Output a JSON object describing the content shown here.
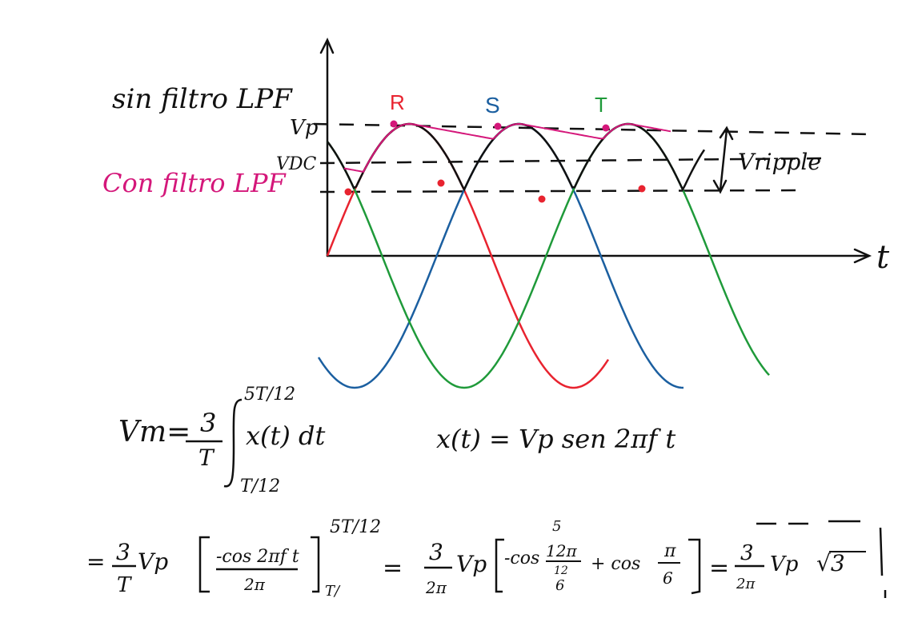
{
  "labels": {
    "sin_filtro": "sin filtro LPF",
    "con_filtro": "Con filtro LPF",
    "vp": "Vp",
    "vdc": "VDC",
    "vripple": "Vripple",
    "t": "t",
    "phase_r": "R",
    "phase_s": "S",
    "phase_t": "T"
  },
  "equations": {
    "vm_lhs": "Vm=",
    "vm_num": "3",
    "vm_den": "T",
    "int_upper": "5T/12",
    "int_lower": "T/12",
    "integrand": "x(t) dt",
    "xt_def": "x(t) = Vp sen 2πf t",
    "line2_a_num": "3",
    "line2_a_den": "T",
    "line2_vp": "Vp",
    "line2_cos_num": "-cos 2πf t",
    "line2_cos_den": "2π",
    "line2_upper": "5T/12",
    "line2_lower": "T/",
    "eq1": "=",
    "line2_b_num": "3",
    "line2_b_den": "2π",
    "line2_b_vp": "Vp",
    "bracket_cos1": "-cos",
    "frac_5": "5",
    "frac_num": "12π",
    "frac_mid": "12",
    "frac_den": "6",
    "plus_cos": "+ cos",
    "pi6_num": "π",
    "pi6_den": "6",
    "eq2": "=",
    "res_num": "3",
    "res_den": "2π",
    "res_vp": "Vp",
    "res_sqrt": "√3"
  },
  "colors": {
    "ink": "#111111",
    "phase_r": "#e8232f",
    "phase_s": "#1b5fa0",
    "phase_t": "#1f9a3a",
    "filtered": "#d4177a"
  }
}
